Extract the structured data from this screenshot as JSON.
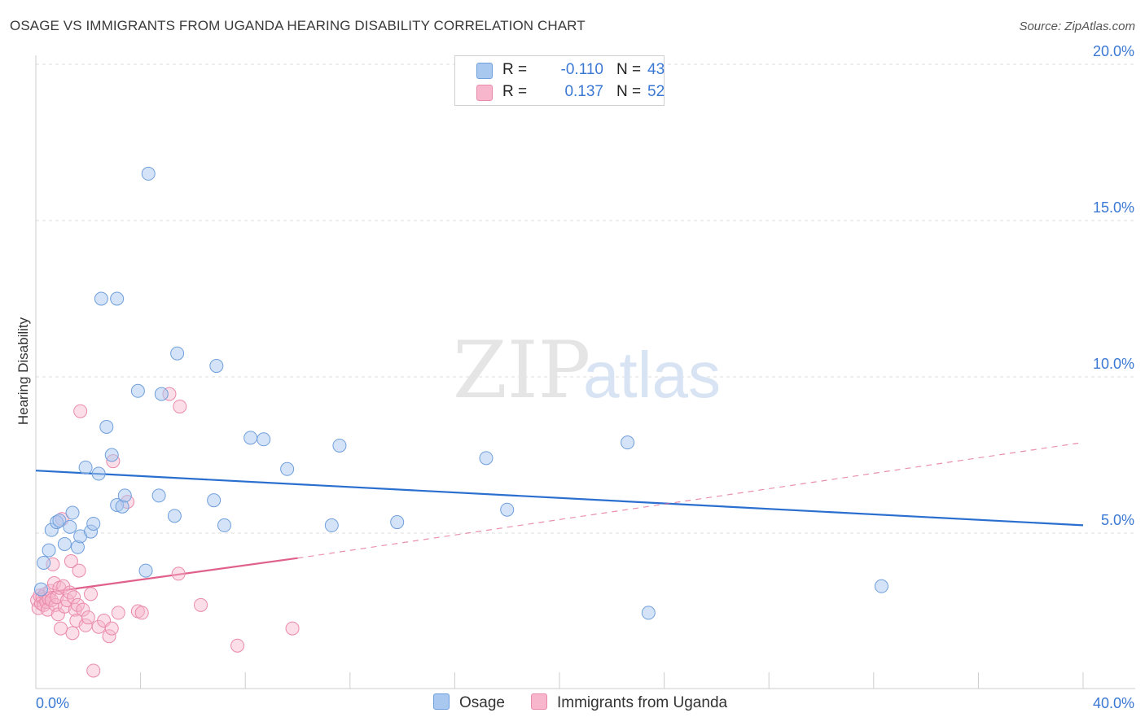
{
  "title": "OSAGE VS IMMIGRANTS FROM UGANDA HEARING DISABILITY CORRELATION CHART",
  "source": "Source: ZipAtlas.com",
  "watermark": {
    "zip": "ZIP",
    "atlas": "atlas"
  },
  "legend": {
    "rows": [
      {
        "r_label": "R =",
        "r_value": "-0.110",
        "n_label": "N =",
        "n_value": "43"
      },
      {
        "r_label": "R =",
        "r_value": "0.137",
        "n_label": "N =",
        "n_value": "52"
      }
    ]
  },
  "bottom_legend": [
    {
      "label": "Osage"
    },
    {
      "label": "Immigrants from Uganda"
    }
  ],
  "colors": {
    "blue_fill": "#a9c8f0",
    "blue_stroke": "#6f9fdc",
    "blue_line": "#2a6fcf",
    "pink_fill": "#f7b6cb",
    "pink_stroke": "#ea8aab",
    "pink_line": "#e0608c",
    "tick_label": "#3a78d4",
    "grid": "#dcdcdc"
  },
  "chart_data": {
    "type": "scatter",
    "title": "OSAGE VS IMMIGRANTS FROM UGANDA HEARING DISABILITY CORRELATION CHART",
    "xlabel": "",
    "ylabel": "Hearing Disability",
    "xlim": [
      0,
      40
    ],
    "ylim": [
      0,
      20
    ],
    "x_tick_labels": [
      "0.0%",
      "40.0%"
    ],
    "y_ticks": [
      5,
      10,
      15,
      20
    ],
    "y_tick_labels": [
      "5.0%",
      "10.0%",
      "15.0%",
      "20.0%"
    ],
    "grid": true,
    "legend_position": "top-center",
    "series": [
      {
        "name": "Osage",
        "r": -0.11,
        "n": 43,
        "trend": {
          "x": [
            0,
            40
          ],
          "y": [
            7.0,
            5.25
          ],
          "style": "solid"
        },
        "points": [
          [
            0.2,
            3.2
          ],
          [
            0.3,
            4.05
          ],
          [
            0.5,
            4.45
          ],
          [
            0.6,
            5.1
          ],
          [
            0.8,
            5.35
          ],
          [
            0.9,
            5.4
          ],
          [
            1.1,
            4.65
          ],
          [
            1.3,
            5.2
          ],
          [
            1.4,
            5.65
          ],
          [
            1.6,
            4.55
          ],
          [
            1.7,
            4.9
          ],
          [
            2.1,
            5.05
          ],
          [
            2.2,
            5.3
          ],
          [
            1.9,
            7.1
          ],
          [
            2.4,
            6.9
          ],
          [
            2.5,
            12.5
          ],
          [
            2.7,
            8.4
          ],
          [
            2.9,
            7.5
          ],
          [
            3.1,
            12.5
          ],
          [
            3.1,
            5.9
          ],
          [
            3.3,
            5.85
          ],
          [
            3.4,
            6.2
          ],
          [
            3.9,
            9.55
          ],
          [
            4.2,
            3.8
          ],
          [
            4.3,
            16.5
          ],
          [
            4.7,
            6.2
          ],
          [
            4.8,
            9.45
          ],
          [
            5.3,
            5.55
          ],
          [
            5.4,
            10.75
          ],
          [
            6.8,
            6.05
          ],
          [
            6.9,
            10.35
          ],
          [
            7.2,
            5.25
          ],
          [
            8.2,
            8.05
          ],
          [
            8.7,
            8.0
          ],
          [
            9.6,
            7.05
          ],
          [
            11.3,
            5.25
          ],
          [
            11.6,
            7.8
          ],
          [
            13.8,
            5.35
          ],
          [
            17.2,
            7.4
          ],
          [
            18.0,
            5.75
          ],
          [
            22.6,
            7.9
          ],
          [
            23.4,
            2.45
          ],
          [
            32.3,
            3.3
          ]
        ]
      },
      {
        "name": "Immigrants from Uganda",
        "r": 0.137,
        "n": 52,
        "trend": {
          "x": [
            0,
            10
          ],
          "y": [
            3.05,
            4.2
          ],
          "style": "solid",
          "extended": {
            "x": [
              10,
              40
            ],
            "y": [
              4.2,
              7.9
            ],
            "style": "dashed"
          }
        },
        "points": [
          [
            0.05,
            2.85
          ],
          [
            0.1,
            2.6
          ],
          [
            0.15,
            3.0
          ],
          [
            0.2,
            2.75
          ],
          [
            0.25,
            2.95
          ],
          [
            0.3,
            2.7
          ],
          [
            0.35,
            3.05
          ],
          [
            0.4,
            2.8
          ],
          [
            0.45,
            2.55
          ],
          [
            0.5,
            2.9
          ],
          [
            0.55,
            3.15
          ],
          [
            0.6,
            2.85
          ],
          [
            0.65,
            4.0
          ],
          [
            0.7,
            3.4
          ],
          [
            0.75,
            2.7
          ],
          [
            0.8,
            2.95
          ],
          [
            0.85,
            2.4
          ],
          [
            0.9,
            3.25
          ],
          [
            0.95,
            1.95
          ],
          [
            1.0,
            5.45
          ],
          [
            1.05,
            3.3
          ],
          [
            1.1,
            2.65
          ],
          [
            1.2,
            2.85
          ],
          [
            1.3,
            3.1
          ],
          [
            1.35,
            4.1
          ],
          [
            1.4,
            1.8
          ],
          [
            1.45,
            2.95
          ],
          [
            1.5,
            2.55
          ],
          [
            1.55,
            2.2
          ],
          [
            1.6,
            2.7
          ],
          [
            1.65,
            3.8
          ],
          [
            1.7,
            8.9
          ],
          [
            1.8,
            2.55
          ],
          [
            1.9,
            2.05
          ],
          [
            2.0,
            2.3
          ],
          [
            2.1,
            3.05
          ],
          [
            2.2,
            0.6
          ],
          [
            2.4,
            2.0
          ],
          [
            2.6,
            2.2
          ],
          [
            2.8,
            1.7
          ],
          [
            2.9,
            1.95
          ],
          [
            2.95,
            7.3
          ],
          [
            3.15,
            2.45
          ],
          [
            3.5,
            6.0
          ],
          [
            3.9,
            2.5
          ],
          [
            4.05,
            2.45
          ],
          [
            5.1,
            9.45
          ],
          [
            5.5,
            9.05
          ],
          [
            5.45,
            3.7
          ],
          [
            6.3,
            2.7
          ],
          [
            7.7,
            1.4
          ],
          [
            9.8,
            1.95
          ]
        ]
      }
    ]
  }
}
